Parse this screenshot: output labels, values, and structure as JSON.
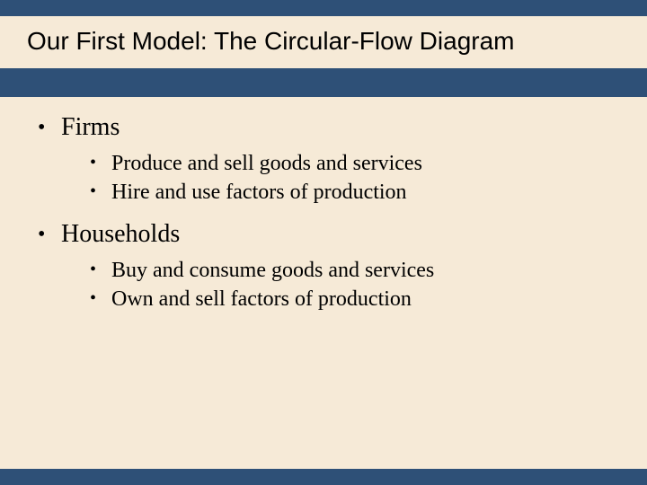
{
  "slide": {
    "background_color": "#2e5077",
    "content_background_color": "#f6ead7",
    "title": {
      "text": "Our First Model: The Circular-Flow Diagram",
      "font_family": "Arial",
      "font_size_pt": 28,
      "color": "#000000"
    },
    "body": {
      "font_family": "Times New Roman",
      "top_font_size_pt": 28,
      "sub_font_size_pt": 24,
      "text_color": "#000000",
      "items": [
        {
          "label": "Firms",
          "sub": [
            "Produce and sell goods and services",
            "Hire and use factors of production"
          ]
        },
        {
          "label": "Households",
          "sub": [
            "Buy and consume goods and services",
            "Own and sell factors of production"
          ]
        }
      ]
    }
  }
}
